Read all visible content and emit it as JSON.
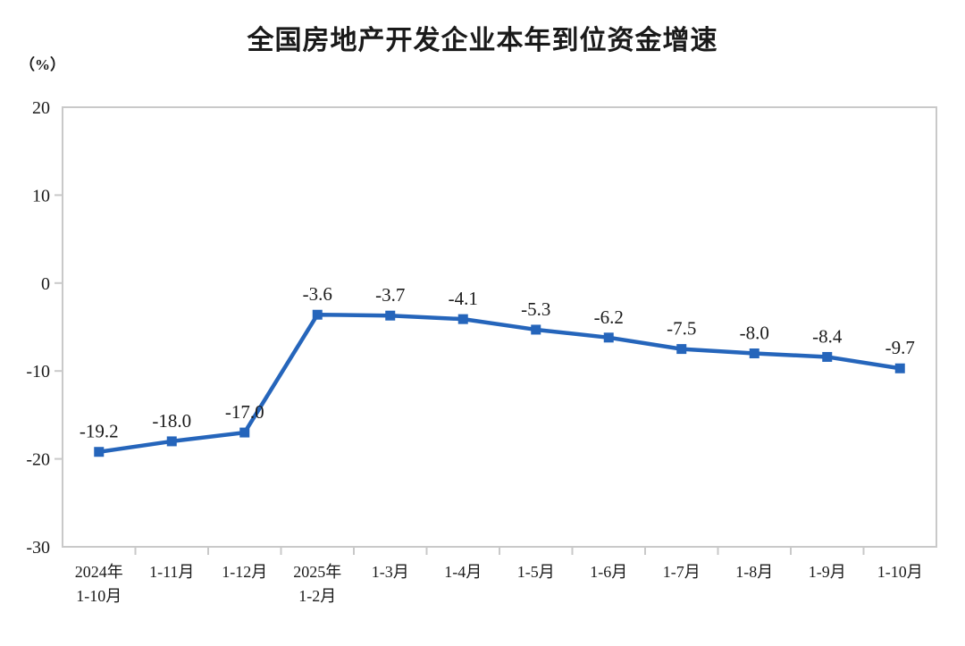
{
  "chart_data": {
    "type": "line",
    "title": "全国房地产开发企业本年到位资金增速",
    "unit_label": "（%）",
    "categories": [
      "2024年\n1-10月",
      "1-11月",
      "1-12月",
      "2025年\n1-2月",
      "1-3月",
      "1-4月",
      "1-5月",
      "1-6月",
      "1-7月",
      "1-8月",
      "1-9月",
      "1-10月"
    ],
    "values": [
      -19.2,
      -18.0,
      -17.0,
      -3.6,
      -3.7,
      -4.1,
      -5.3,
      -6.2,
      -7.5,
      -8.0,
      -8.4,
      -9.7
    ],
    "data_labels": [
      "-19.2",
      "-18.0",
      "-17.0",
      "-3.6",
      "-3.7",
      "-4.1",
      "-5.3",
      "-6.2",
      "-7.5",
      "-8.0",
      "-8.4",
      "-9.7"
    ],
    "ylim": [
      -30,
      20
    ],
    "yticks": [
      20,
      10,
      0,
      -10,
      -20,
      -30
    ],
    "grid": false,
    "legend": "none",
    "marker": "square",
    "line_color": "#2565bb",
    "axis_color": "#c9c9c9",
    "text_color": "#1a1a1a"
  }
}
